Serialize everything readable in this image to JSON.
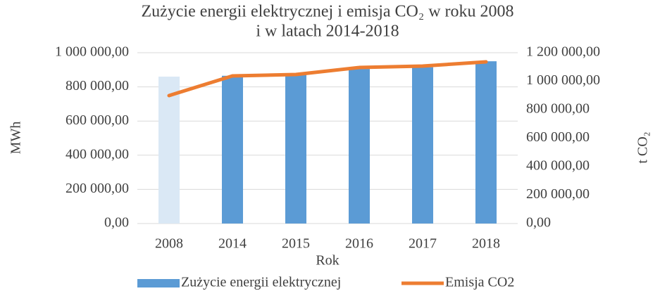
{
  "chart_data": {
    "type": "bar_line",
    "title": [
      "Zużycie energii elektrycznej i emisja CO₂ w roku 2008",
      "i w latach 2014-2018"
    ],
    "x_label": "Rok",
    "y_label": "MWh",
    "y2_label": "t CO₂",
    "categories": [
      "2008",
      "2014",
      "2015",
      "2016",
      "2017",
      "2018"
    ],
    "series": [
      {
        "name": "Zużycie energii elektrycznej",
        "type": "bar",
        "color": "#5b9bd5",
        "colors": [
          "#dae8f5",
          "#5b9bd5",
          "#5b9bd5",
          "#5b9bd5",
          "#5b9bd5",
          "#5b9bd5"
        ],
        "values": [
          860000,
          865000,
          870000,
          905000,
          915000,
          950000
        ]
      },
      {
        "name": "Emisja CO2",
        "type": "line",
        "axis": "y2",
        "color": "#ed7d31",
        "values": [
          899000,
          1037000,
          1047000,
          1096000,
          1106000,
          1136000
        ]
      }
    ],
    "ylim": [
      0,
      1000000
    ],
    "yticks": [
      {
        "value": 0,
        "label": "0,00"
      },
      {
        "value": 200000,
        "label": "200 000,00"
      },
      {
        "value": 400000,
        "label": "400 000,00"
      },
      {
        "value": 600000,
        "label": "600 000,00"
      },
      {
        "value": 800000,
        "label": "800 000,00"
      },
      {
        "value": 1000000,
        "label": "1 000 000,00"
      }
    ],
    "y2lim": [
      0,
      1200000
    ],
    "y2ticks": [
      {
        "value": 0,
        "label": "0,00"
      },
      {
        "value": 200000,
        "label": "200 000,00"
      },
      {
        "value": 400000,
        "label": "400 000,00"
      },
      {
        "value": 600000,
        "label": "600 000,00"
      },
      {
        "value": 800000,
        "label": "800 000,00"
      },
      {
        "value": 1000000,
        "label": "1 000 000,00"
      },
      {
        "value": 1200000,
        "label": "1 200 000,00"
      }
    ],
    "grid": true,
    "legend": "bottom"
  }
}
